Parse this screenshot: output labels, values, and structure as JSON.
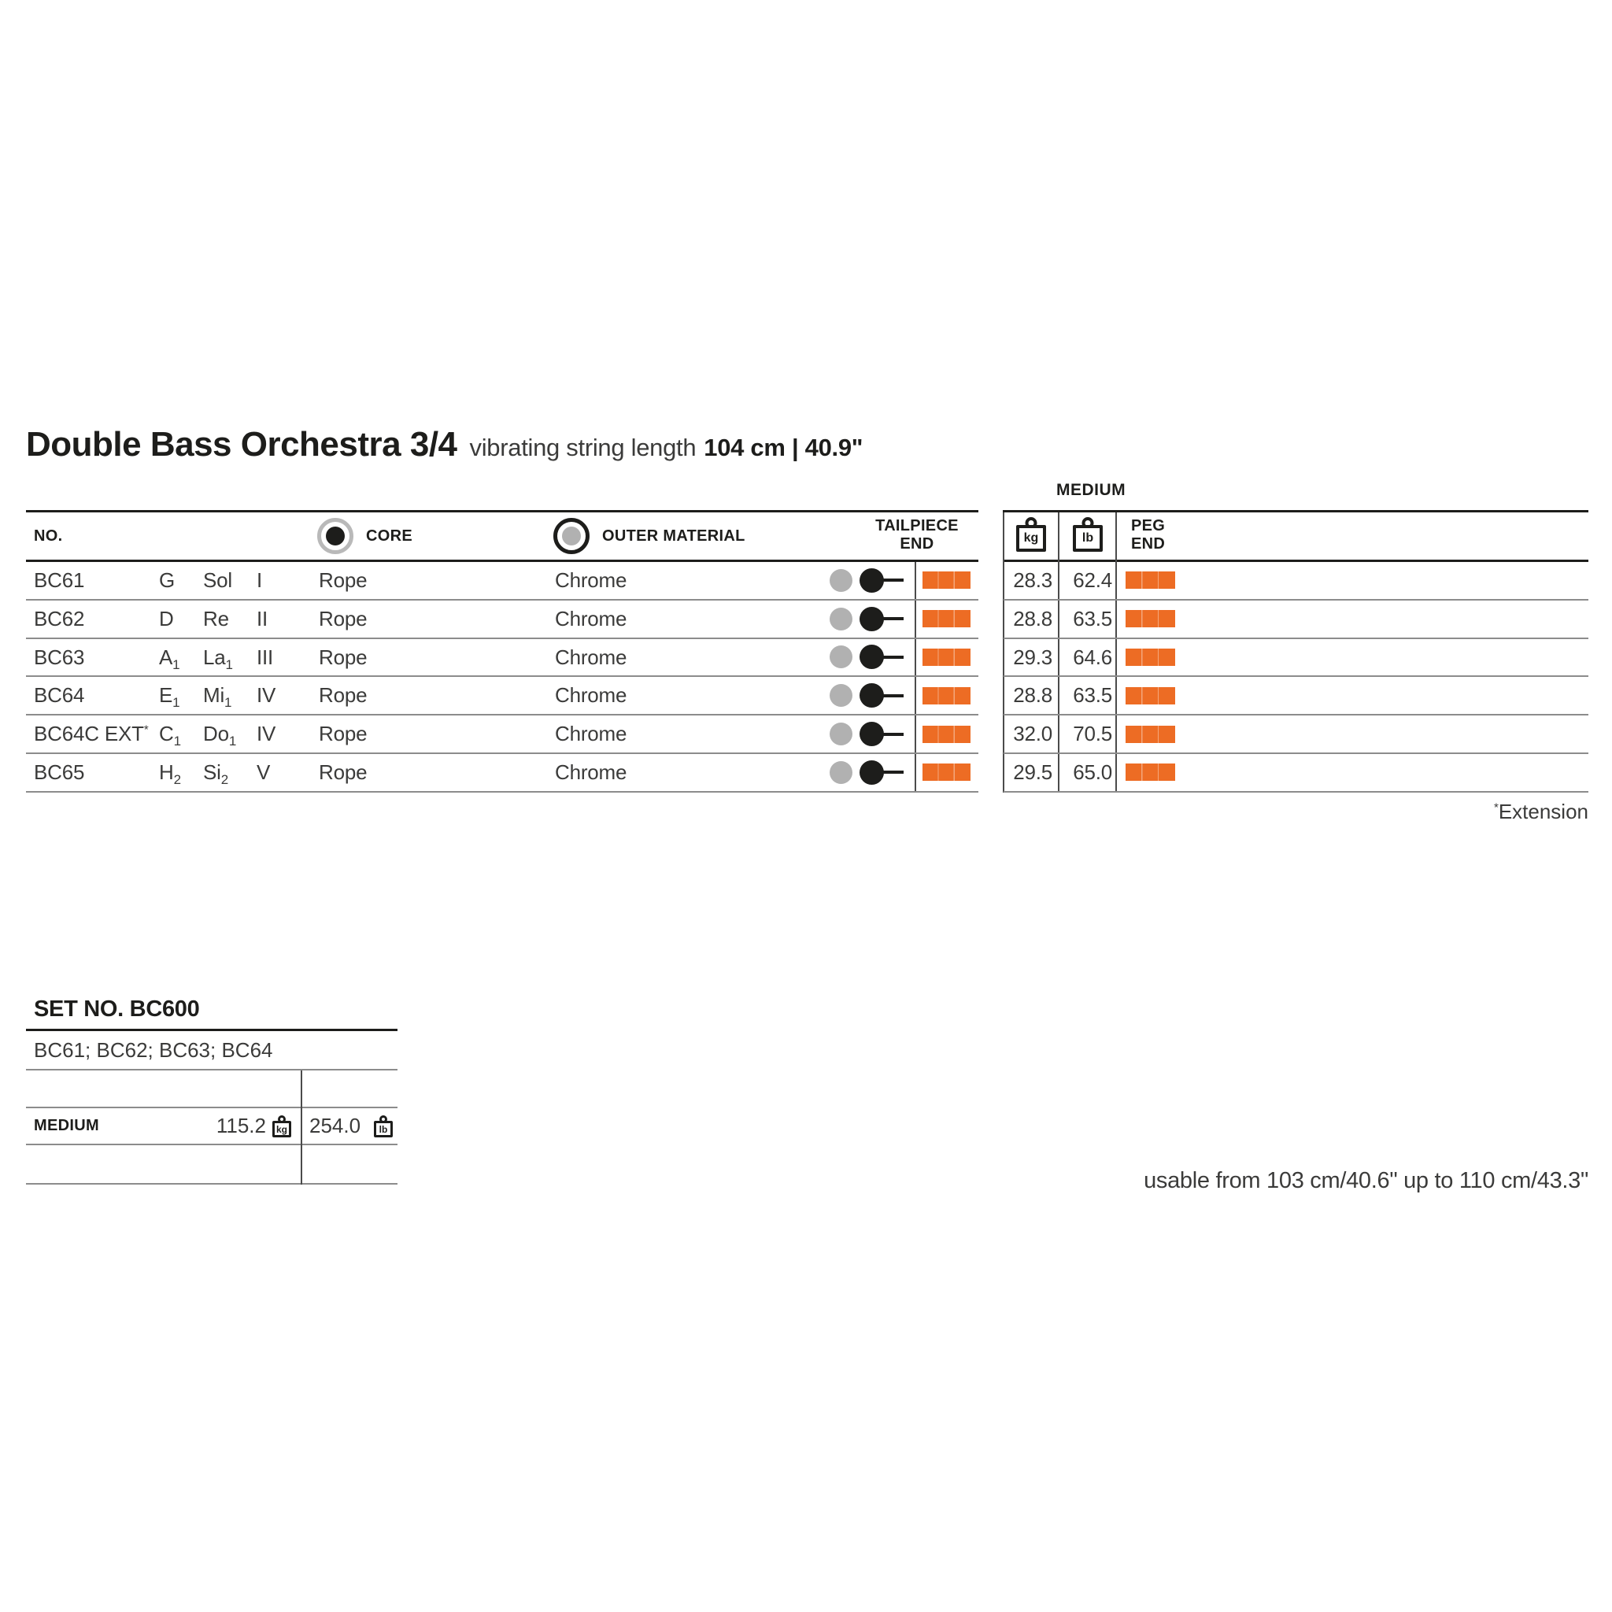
{
  "page": {
    "title": "Double Bass Orchestra 3/4",
    "subtitle_regular": "vibrating string length",
    "subtitle_bold": "104 cm | 40.9\"",
    "extension_sup": "*",
    "extension_label": "Extension",
    "usable_note": "usable from 103 cm/40.6\" up to 110 cm/43.3\""
  },
  "main_table": {
    "medium_label": "MEDIUM",
    "headers": {
      "no": "NO.",
      "core": "CORE",
      "outer_material": "OUTER MATERIAL",
      "tailpiece_line1": "TAILPIECE",
      "tailpiece_line2": "END",
      "kg_unit": "kg",
      "lb_unit": "lb",
      "peg_line1": "PEG",
      "peg_line2": "END"
    },
    "rows": [
      {
        "no": "BC61",
        "no_sup": "",
        "note": "G",
        "note_sub": "",
        "solfege": "Sol",
        "solfege_sub": "",
        "position": "I",
        "core": "Rope",
        "outer": "Chrome",
        "kg": "28.3",
        "lb": "62.4"
      },
      {
        "no": "BC62",
        "no_sup": "",
        "note": "D",
        "note_sub": "",
        "solfege": "Re",
        "solfege_sub": "",
        "position": "II",
        "core": "Rope",
        "outer": "Chrome",
        "kg": "28.8",
        "lb": "63.5"
      },
      {
        "no": "BC63",
        "no_sup": "",
        "note": "A",
        "note_sub": "1",
        "solfege": "La",
        "solfege_sub": "1",
        "position": "III",
        "core": "Rope",
        "outer": "Chrome",
        "kg": "29.3",
        "lb": "64.6"
      },
      {
        "no": "BC64",
        "no_sup": "",
        "note": "E",
        "note_sub": "1",
        "solfege": "Mi",
        "solfege_sub": "1",
        "position": "IV",
        "core": "Rope",
        "outer": "Chrome",
        "kg": "28.8",
        "lb": "63.5"
      },
      {
        "no": "BC64C EXT",
        "no_sup": "*",
        "note": "C",
        "note_sub": "1",
        "solfege": "Do",
        "solfege_sub": "1",
        "position": "IV",
        "core": "Rope",
        "outer": "Chrome",
        "kg": "32.0",
        "lb": "70.5"
      },
      {
        "no": "BC65",
        "no_sup": "",
        "note": "H",
        "note_sub": "2",
        "solfege": "Si",
        "solfege_sub": "2",
        "position": "V",
        "core": "Rope",
        "outer": "Chrome",
        "kg": "29.5",
        "lb": "65.0"
      }
    ]
  },
  "set_table": {
    "title": "SET NO. BC600",
    "contents": "BC61; BC62; BC63; BC64",
    "gauge_label": "MEDIUM",
    "kg_value": "115.2",
    "kg_unit": "kg",
    "lb_value": "254.0",
    "lb_unit": "lb"
  },
  "colors": {
    "accent_orange": "#ed6c24",
    "gray_dot": "#b1b1b1",
    "text": "#1d1d1b",
    "row_rule": "#8c8c8c"
  }
}
